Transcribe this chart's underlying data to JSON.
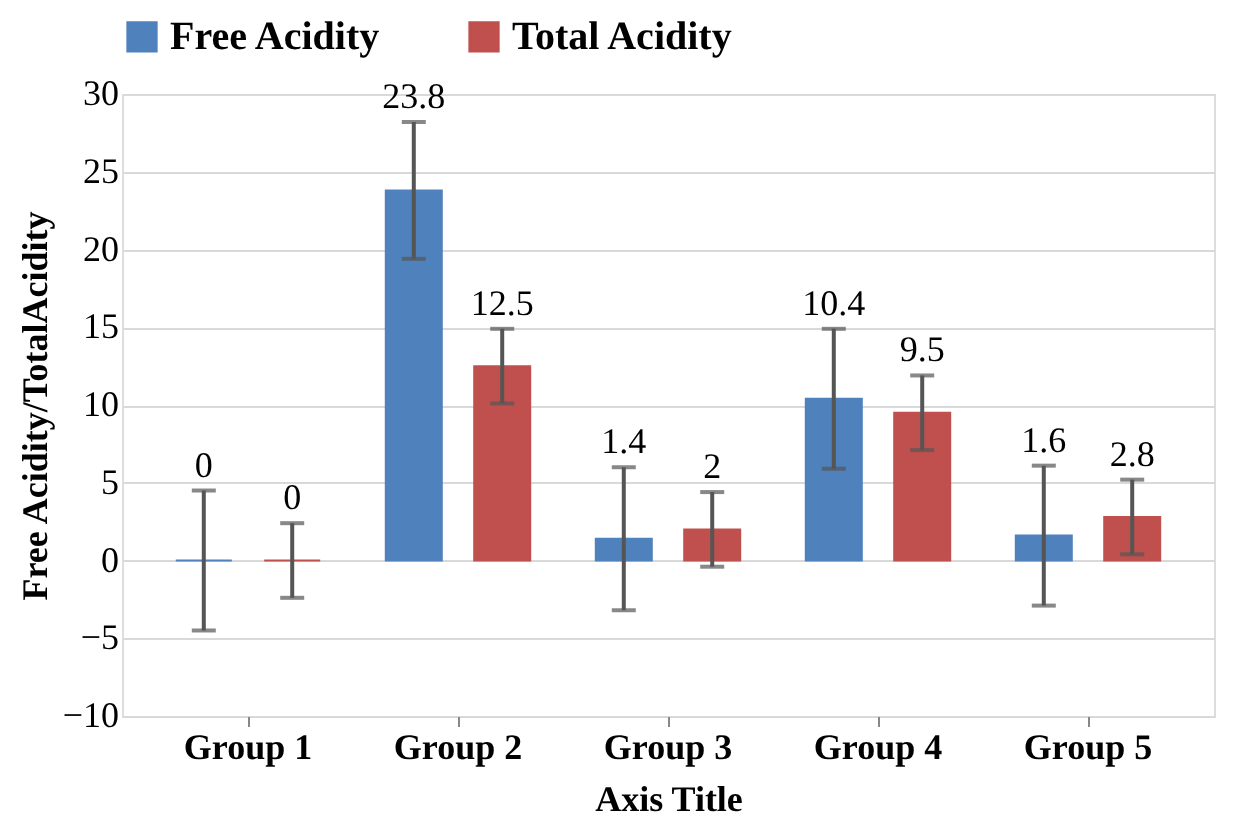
{
  "chart_data": {
    "type": "bar",
    "xlabel": "Axis Title",
    "ylabel": "Free Acidity/TotalAcidity",
    "categories": [
      "Group 1",
      "Group 2",
      "Group 3",
      "Group 4",
      "Group 5"
    ],
    "series": [
      {
        "name": "Free Acidity",
        "color": "#4f81bd",
        "values": [
          0,
          23.8,
          1.4,
          10.4,
          1.6
        ],
        "errors": [
          4.5,
          4.4,
          4.6,
          4.5,
          4.5
        ]
      },
      {
        "name": "Total Acidity",
        "color": "#c0504d",
        "values": [
          0,
          12.5,
          2,
          9.5,
          2.8
        ],
        "errors": [
          2.4,
          2.4,
          2.4,
          2.4,
          2.4
        ]
      }
    ],
    "ylim": [
      -10,
      30
    ],
    "yticks": [
      -10,
      -5,
      0,
      5,
      10,
      15,
      20,
      25,
      30
    ],
    "grid": "y",
    "legend": "top",
    "data_labels": true
  }
}
